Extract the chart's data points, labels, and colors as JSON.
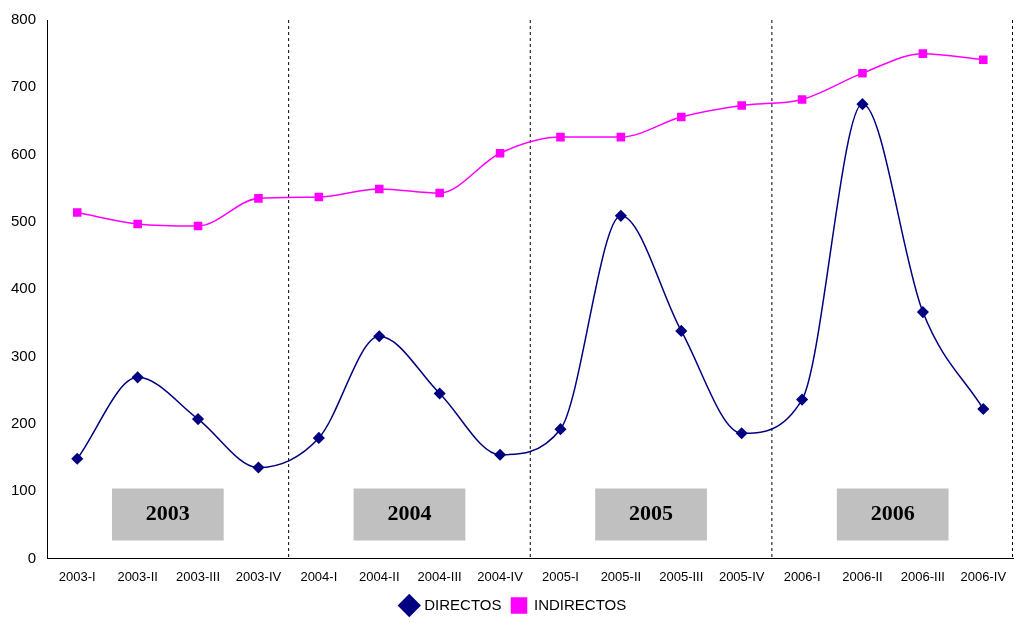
{
  "chart_data": {
    "type": "line",
    "categories": [
      "2003-I",
      "2003-II",
      "2003-III",
      "2003-IV",
      "2004-I",
      "2004-II",
      "2004-III",
      "2004-IV",
      "2005-I",
      "2005-II",
      "2005-III",
      "2005-IV",
      "2006-I",
      "2006-II",
      "2006-III",
      "2006-IV"
    ],
    "series": [
      {
        "name": "DIRECTOS",
        "color": "#000080",
        "marker": "diamond",
        "values": [
          148,
          269,
          207,
          135,
          179,
          330,
          245,
          154,
          192,
          509,
          338,
          186,
          236,
          675,
          366,
          222
        ]
      },
      {
        "name": "INDIRECTOS",
        "color": "#ff00ff",
        "marker": "square",
        "values": [
          514,
          497,
          494,
          535,
          537,
          549,
          543,
          602,
          626,
          626,
          656,
          673,
          682,
          721,
          750,
          741
        ]
      }
    ],
    "ylim": [
      0,
      800
    ],
    "yticks": [
      0,
      100,
      200,
      300,
      400,
      500,
      600,
      700,
      800
    ],
    "grid": false,
    "legend": "bottom",
    "bands": [
      {
        "axis": "x",
        "from": "2003-I",
        "to": "2003-IV",
        "label": "2003",
        "color": "#c0c0c0"
      },
      {
        "axis": "x",
        "from": "2004-I",
        "to": "2004-IV",
        "label": "2004",
        "color": "#c0c0c0"
      },
      {
        "axis": "x",
        "from": "2005-I",
        "to": "2005-IV",
        "label": "2005",
        "color": "#c0c0c0"
      },
      {
        "axis": "x",
        "from": "2006-I",
        "to": "2006-IV",
        "label": "2006",
        "color": "#c0c0c0"
      }
    ]
  }
}
